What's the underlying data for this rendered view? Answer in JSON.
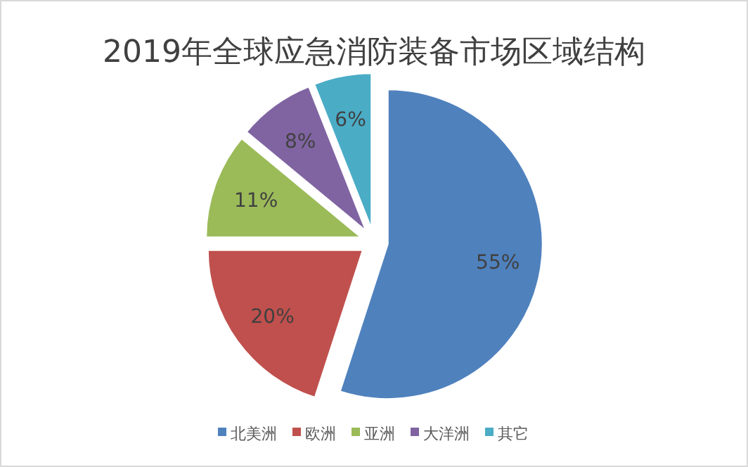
{
  "chart_data": {
    "type": "pie",
    "title": "2019年全球应急消防装备市场区域结构",
    "categories": [
      "北美洲",
      "欧洲",
      "亚洲",
      "大洋洲",
      "其它"
    ],
    "values": [
      55,
      20,
      11,
      8,
      6
    ],
    "value_labels": [
      "55%",
      "20%",
      "11%",
      "8%",
      "6%"
    ],
    "colors": [
      "#4f81bd",
      "#c0504d",
      "#9bbb59",
      "#8064a2",
      "#4bacc6"
    ],
    "legend": "bottom"
  }
}
